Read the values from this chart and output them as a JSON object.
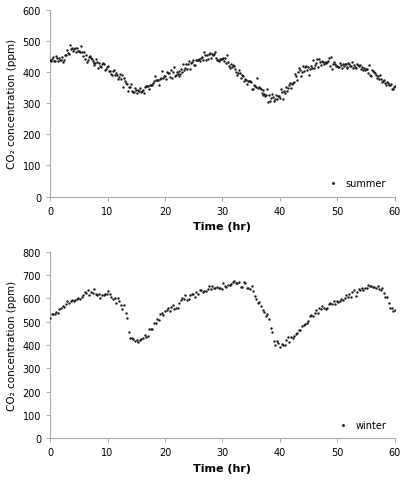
{
  "summer": {
    "label": "summer",
    "ylabel": "CO₂ concentration (ppm)",
    "xlabel": "Time (hr)",
    "xlim": [
      0,
      60
    ],
    "ylim": [
      0,
      600
    ],
    "yticks": [
      0,
      100,
      200,
      300,
      400,
      500,
      600
    ],
    "xticks": [
      0,
      10,
      20,
      30,
      40,
      50,
      60
    ]
  },
  "winter": {
    "label": "winter",
    "ylabel": "CO₂ concentration (ppm)",
    "xlabel": "Time (hr)",
    "xlim": [
      0,
      60
    ],
    "ylim": [
      0,
      800
    ],
    "yticks": [
      0,
      100,
      200,
      300,
      400,
      500,
      600,
      700,
      800
    ],
    "xticks": [
      0,
      10,
      20,
      30,
      40,
      50,
      60
    ]
  },
  "dot_color": "#1a1a1a",
  "dot_size": 3,
  "background_color": "#ffffff",
  "spine_color": "#aaaaaa",
  "tick_color": "#555555",
  "label_fontsize": 7.5,
  "tick_fontsize": 7,
  "xlabel_fontsize": 8,
  "legend_fontsize": 7
}
